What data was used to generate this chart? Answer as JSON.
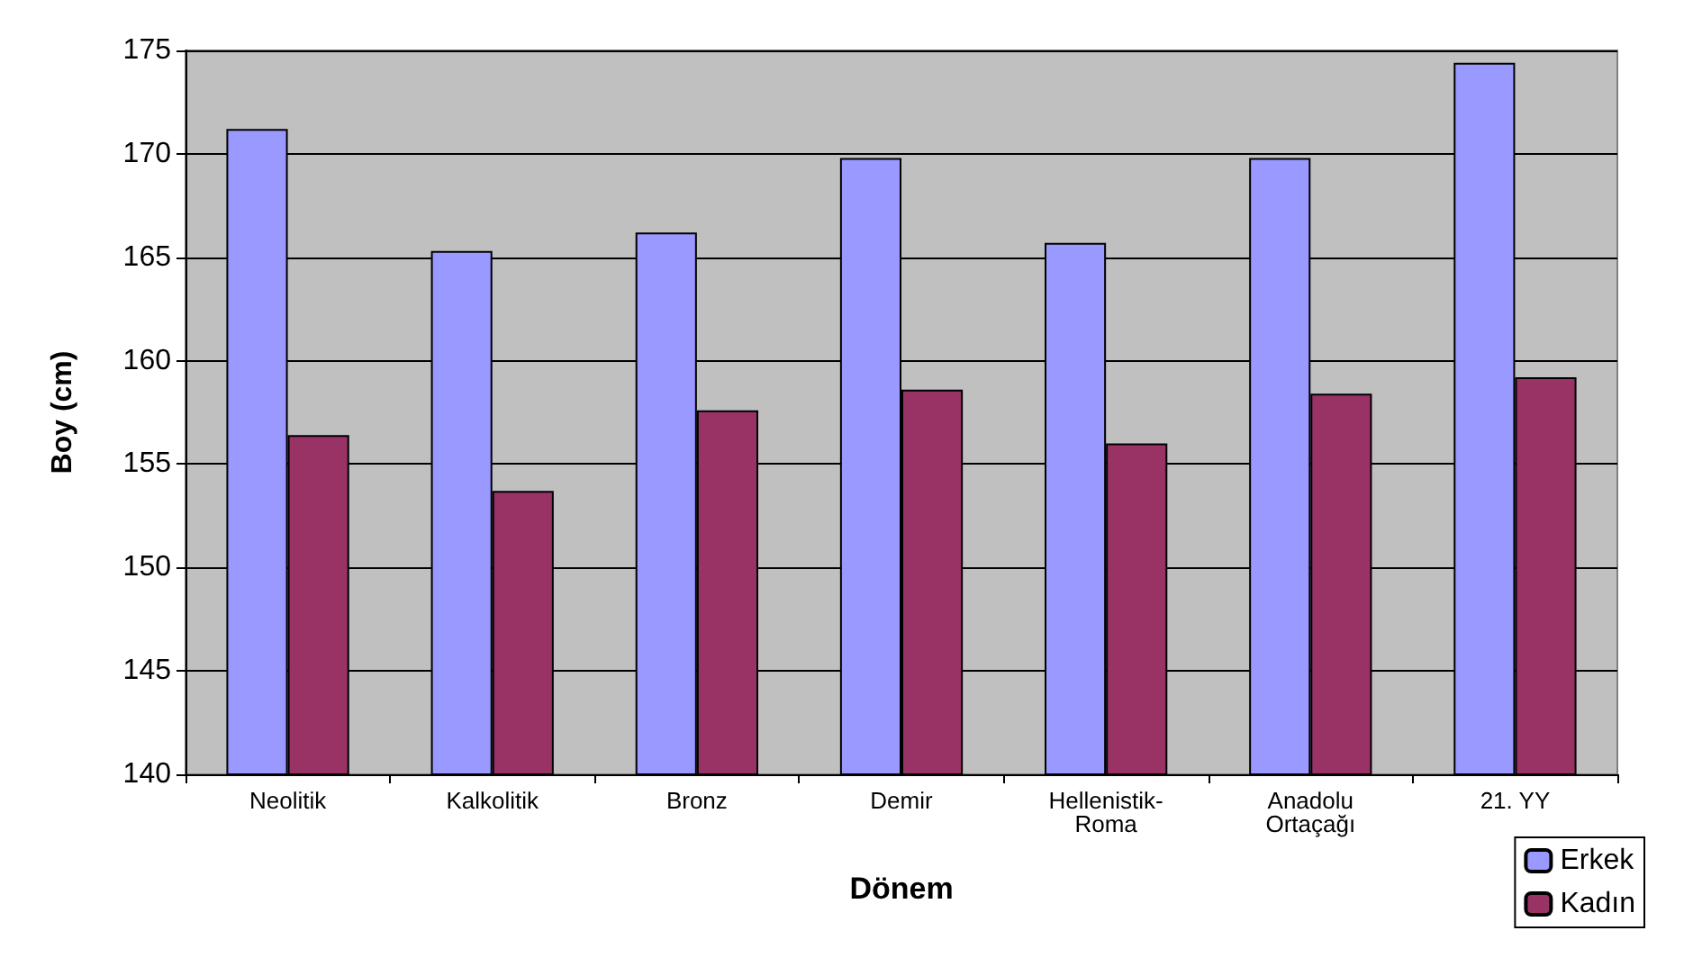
{
  "chart_data": {
    "type": "bar",
    "xlabel": "Dönem",
    "ylabel": "Boy (cm)",
    "categories": [
      "Neolitik",
      "Kalkolitik",
      "Bronz",
      "Demir",
      "Hellenistik-\nRoma",
      "Anadolu\nOrtaçağı",
      "21. YY"
    ],
    "series": [
      {
        "name": "Erkek",
        "color": "#9999ff",
        "values": [
          171.2,
          165.3,
          166.2,
          169.8,
          165.7,
          169.8,
          174.4
        ]
      },
      {
        "name": "Kadın",
        "color": "#993366",
        "values": [
          156.4,
          153.7,
          157.6,
          158.6,
          156,
          158.4,
          159.2
        ]
      }
    ],
    "ylim": [
      140,
      175
    ],
    "yticks": [
      140,
      145,
      150,
      155,
      160,
      165,
      170,
      175
    ],
    "grid": "y",
    "legend": "bottom right"
  }
}
